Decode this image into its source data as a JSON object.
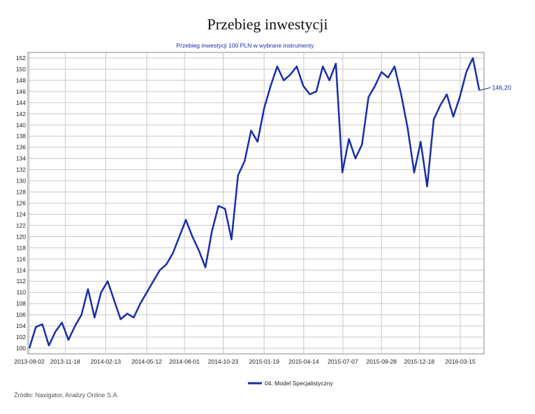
{
  "page": {
    "title": "Przebieg inwestycji",
    "source_note": "Źródło: Navigator, Analizy Online S.A."
  },
  "colors": {
    "series": "#1a2ea8",
    "grid": "#c8c8c8",
    "axis": "#888888",
    "subtitle": "#1a2ea8"
  },
  "chart_data": {
    "type": "line",
    "title": "Przebieg inwestycji",
    "subtitle": "Przebieg inwestycji 100 PLN w wybrane instrumenty",
    "xlabel": "",
    "ylabel": "",
    "ylim": [
      99,
      153
    ],
    "yticks": [
      100,
      102,
      104,
      106,
      108,
      110,
      112,
      114,
      116,
      118,
      120,
      122,
      124,
      126,
      128,
      130,
      132,
      134,
      136,
      138,
      140,
      142,
      144,
      146,
      148,
      150,
      152
    ],
    "xticks": [
      "2013-09-02",
      "2013-11-18",
      "2014-02-13",
      "2014-05-12",
      "2014-08-01",
      "2014-10-23",
      "2015-01-19",
      "2015-04-14",
      "2015-07-07",
      "2015-09-28",
      "2015-12-18",
      "2016-03-15"
    ],
    "grid": true,
    "legend_position": "bottom-center",
    "end_label": "146,20",
    "series": [
      {
        "name": "04. Model Specjalistyczny",
        "x": [
          "2013-09-02",
          "2013-09-16",
          "2013-09-30",
          "2013-10-14",
          "2013-10-28",
          "2013-11-11",
          "2013-11-25",
          "2013-12-09",
          "2013-12-23",
          "2014-01-06",
          "2014-01-20",
          "2014-02-03",
          "2014-02-17",
          "2014-03-03",
          "2014-03-17",
          "2014-03-31",
          "2014-04-14",
          "2014-04-28",
          "2014-05-12",
          "2014-05-26",
          "2014-06-09",
          "2014-06-23",
          "2014-07-07",
          "2014-07-21",
          "2014-08-04",
          "2014-08-18",
          "2014-09-01",
          "2014-09-15",
          "2014-09-29",
          "2014-10-13",
          "2014-10-27",
          "2014-11-10",
          "2014-11-24",
          "2014-12-08",
          "2014-12-22",
          "2015-01-05",
          "2015-01-19",
          "2015-02-02",
          "2015-02-16",
          "2015-03-02",
          "2015-03-16",
          "2015-03-30",
          "2015-04-13",
          "2015-04-27",
          "2015-05-11",
          "2015-05-25",
          "2015-06-08",
          "2015-06-22",
          "2015-07-06",
          "2015-07-20",
          "2015-08-03",
          "2015-08-17",
          "2015-08-31",
          "2015-09-14",
          "2015-09-28",
          "2015-10-12",
          "2015-10-26",
          "2015-11-09",
          "2015-11-23",
          "2015-12-07",
          "2015-12-21",
          "2016-01-04",
          "2016-01-18",
          "2016-02-01",
          "2016-02-15",
          "2016-02-29",
          "2016-03-14",
          "2016-03-28",
          "2016-04-11",
          "2016-04-25"
        ],
        "values": [
          100.0,
          103.8,
          104.3,
          100.5,
          103.0,
          104.6,
          101.5,
          104.0,
          106.0,
          110.6,
          105.5,
          110.0,
          112.0,
          108.6,
          105.2,
          106.2,
          105.5,
          108.0,
          110.0,
          112.0,
          114.0,
          115.0,
          117.0,
          120.0,
          123.0,
          120.0,
          117.5,
          114.5,
          121.0,
          125.5,
          125.0,
          119.5,
          131.0,
          133.5,
          139.0,
          137.0,
          143.0,
          147.0,
          150.5,
          148.0,
          149.0,
          150.5,
          147.0,
          145.5,
          146.0,
          150.5,
          148.0,
          151.0,
          131.5,
          137.5,
          134.0,
          136.5,
          145.0,
          147.0,
          149.5,
          148.5,
          150.5,
          145.5,
          139.5,
          131.5,
          137.0,
          129.0,
          141.0,
          143.5,
          145.5,
          141.5,
          145.0,
          149.5,
          152.0,
          146.2
        ]
      }
    ]
  }
}
